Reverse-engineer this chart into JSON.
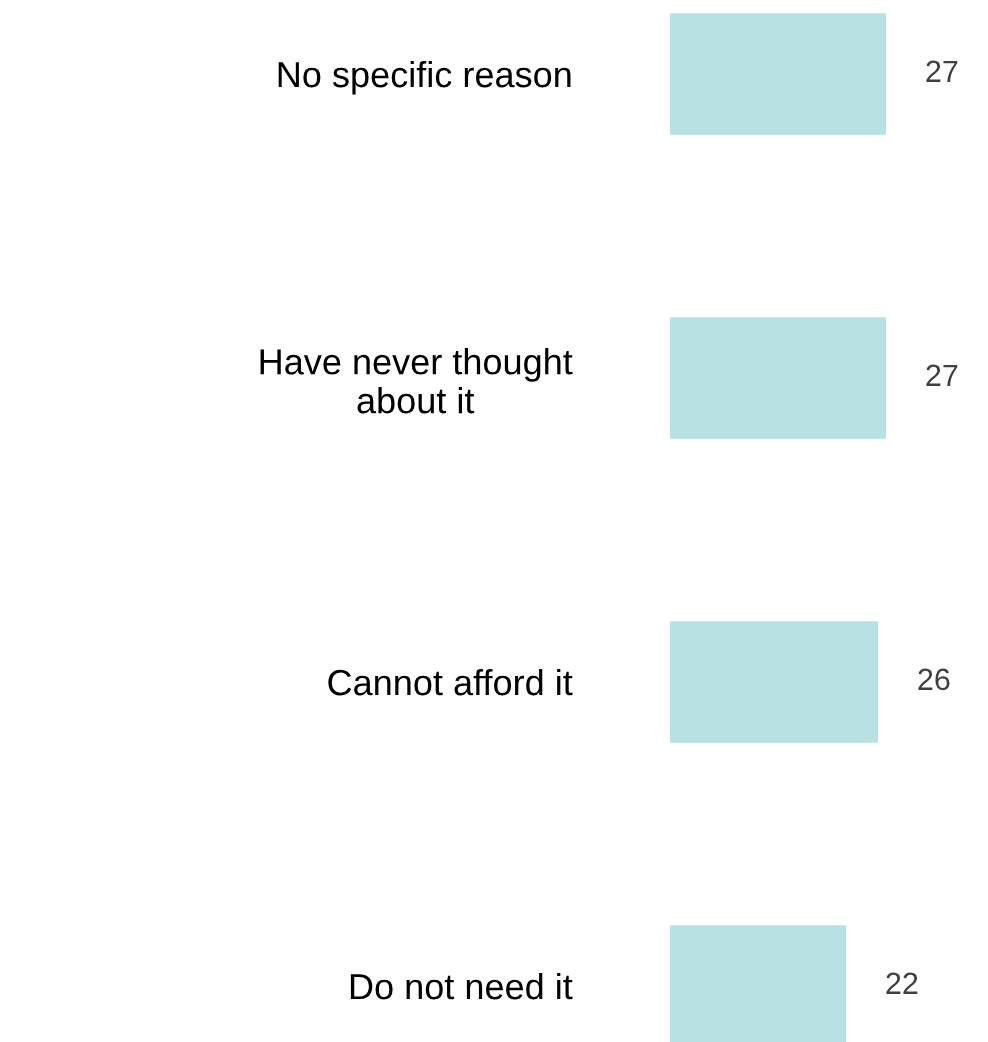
{
  "chart_data": {
    "type": "bar",
    "orientation": "horizontal",
    "categories": [
      "No specific reason",
      "Have never thought\nabout it",
      "Cannot afford it",
      "Do not need it"
    ],
    "values": [
      27,
      27,
      26,
      22
    ],
    "color": "#b9e0e3",
    "data_labels": true,
    "tick_labels": "y",
    "grid": false,
    "legend": false
  }
}
